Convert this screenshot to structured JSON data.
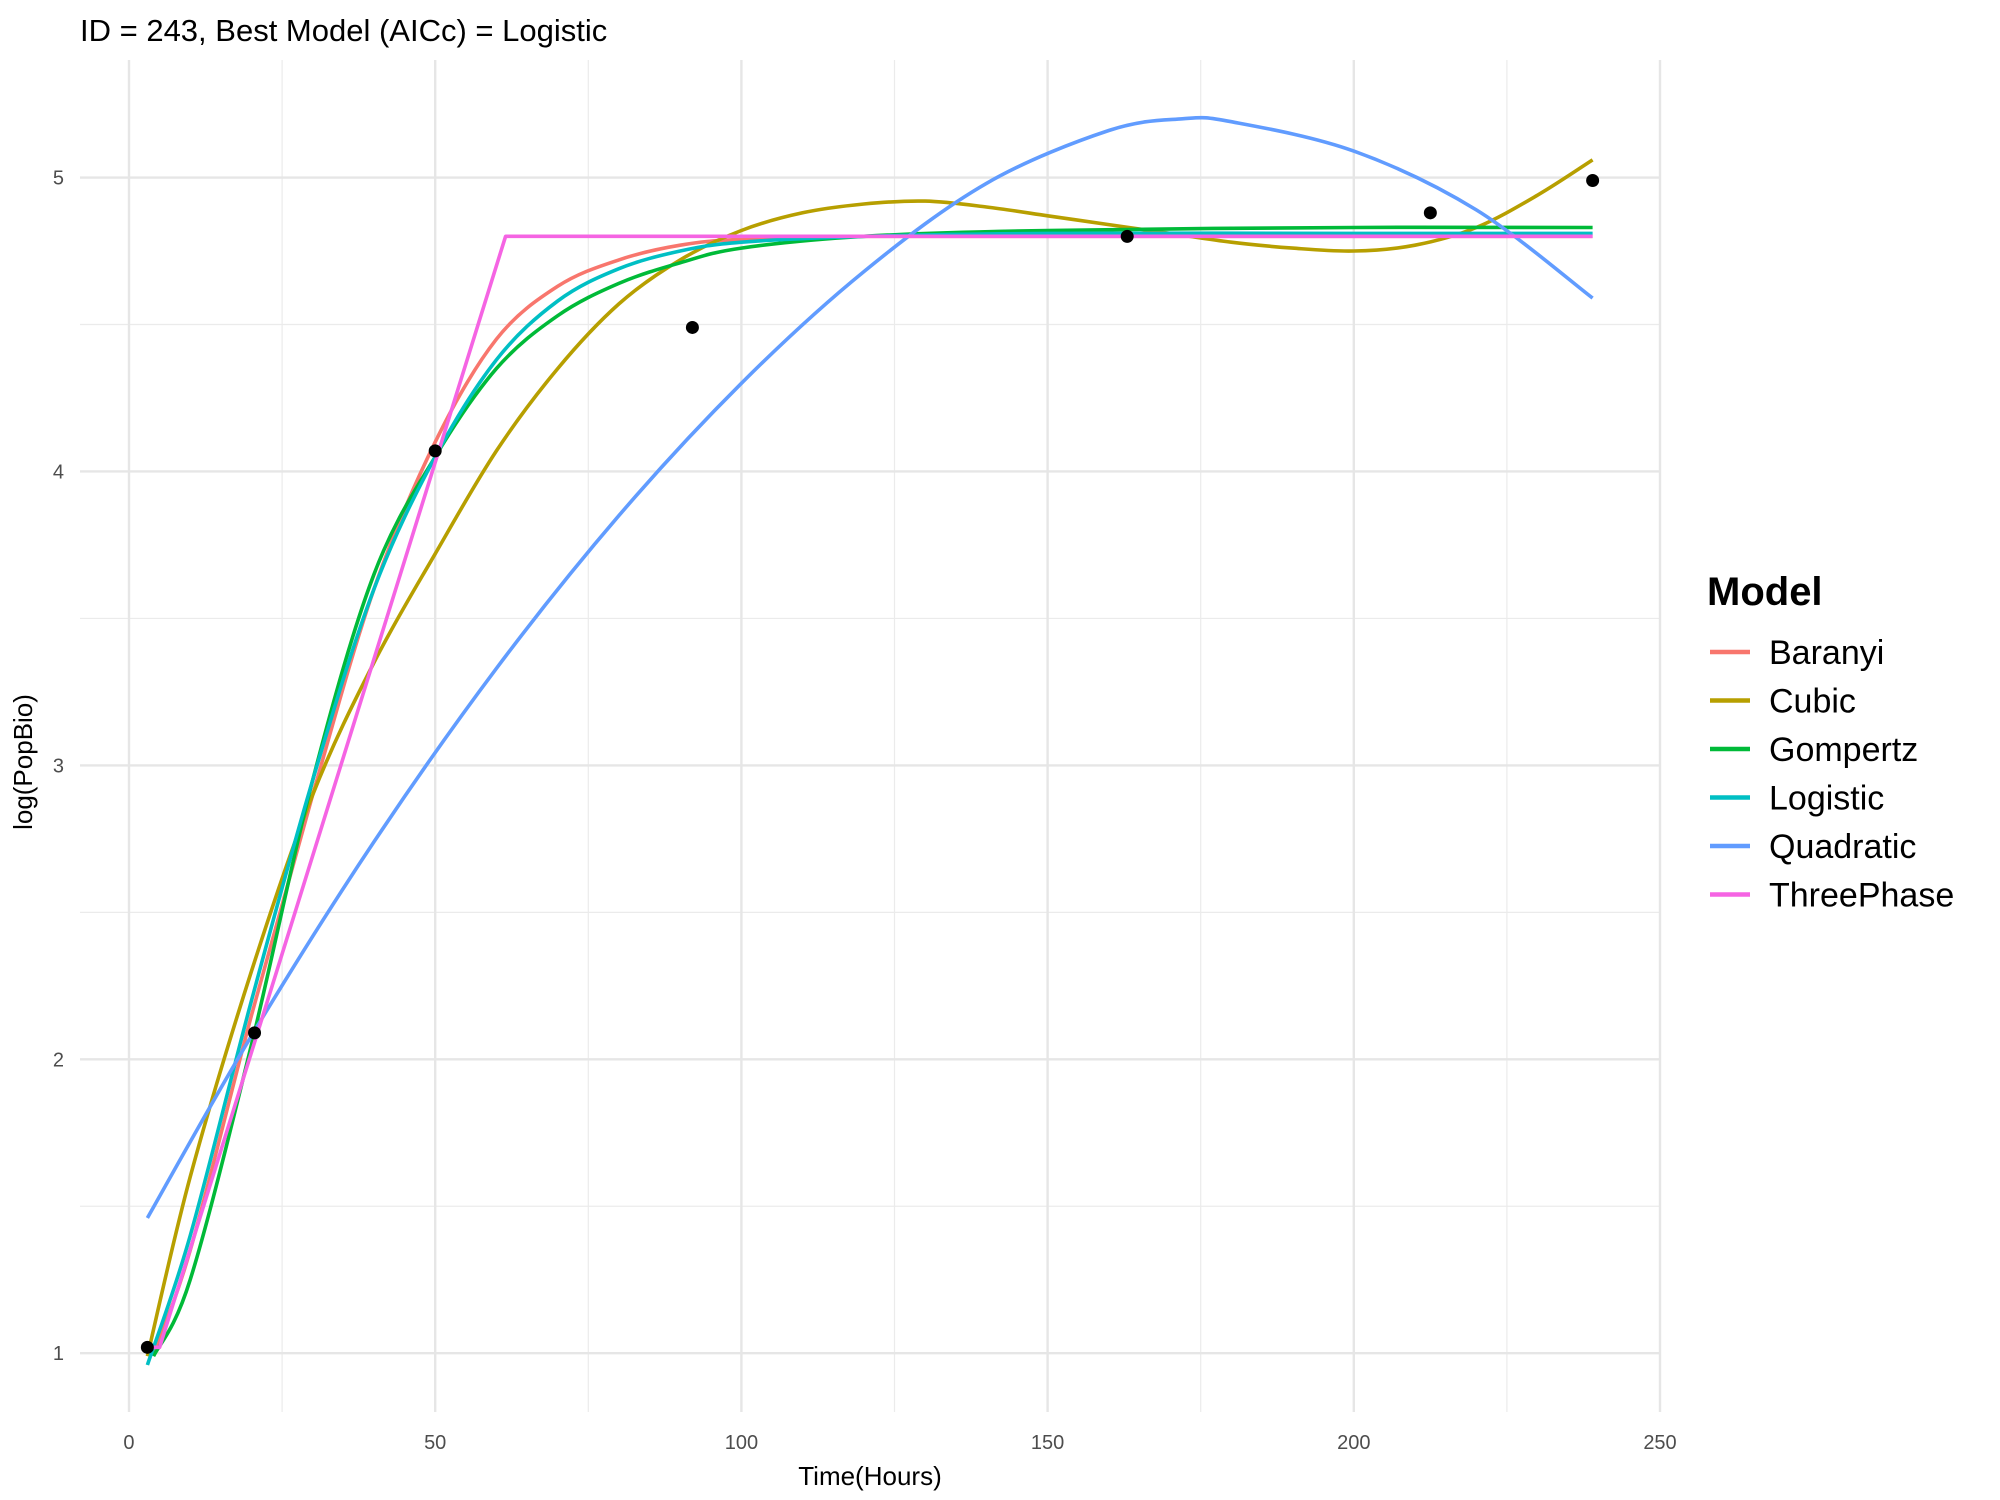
{
  "chart_data": {
    "type": "line",
    "title": "ID = 243, Best Model (AICc) = Logistic",
    "xlabel": "Time(Hours)",
    "ylabel": "log(PopBio)",
    "xlim": [
      -8,
      250
    ],
    "ylim": [
      0.8,
      5.4
    ],
    "x_ticks": [
      0,
      50,
      100,
      150,
      200,
      250
    ],
    "y_ticks": [
      1,
      2,
      3,
      4,
      5
    ],
    "x_tick_labels": [
      "0",
      "50",
      "100",
      "150",
      "200",
      "250"
    ],
    "y_tick_labels": [
      "1",
      "2",
      "3",
      "4",
      "5"
    ],
    "grid": true,
    "legend": {
      "title": "Model",
      "position": "right"
    },
    "points": {
      "color": "#000000",
      "x": [
        3,
        20.5,
        50,
        92,
        163,
        212.5,
        239
      ],
      "y": [
        1.02,
        2.09,
        4.07,
        4.49,
        4.8,
        4.88,
        4.99
      ]
    },
    "series": [
      {
        "name": "Baranyi",
        "color": "#F8766D",
        "x": [
          4,
          10,
          20,
          30,
          40,
          50,
          60,
          70,
          80,
          90,
          100,
          120,
          150,
          200,
          239
        ],
        "y": [
          1.0,
          1.35,
          2.15,
          2.9,
          3.6,
          4.1,
          4.45,
          4.63,
          4.72,
          4.77,
          4.79,
          4.8,
          4.8,
          4.8,
          4.8
        ]
      },
      {
        "name": "Cubic",
        "color": "#B79F00",
        "x": [
          3,
          10,
          20,
          30,
          40,
          50,
          60,
          70,
          80,
          90,
          100,
          110,
          120,
          130,
          140,
          150,
          160,
          170,
          180,
          190,
          200,
          210,
          220,
          230,
          239
        ],
        "y": [
          0.99,
          1.6,
          2.3,
          2.9,
          3.35,
          3.72,
          4.07,
          4.35,
          4.57,
          4.72,
          4.82,
          4.88,
          4.91,
          4.92,
          4.9,
          4.87,
          4.84,
          4.81,
          4.78,
          4.76,
          4.75,
          4.77,
          4.83,
          4.94,
          5.06
        ]
      },
      {
        "name": "Gompertz",
        "color": "#00BA38",
        "x": [
          4,
          10,
          20,
          30,
          40,
          50,
          60,
          70,
          80,
          90,
          100,
          120,
          150,
          200,
          239
        ],
        "y": [
          0.99,
          1.25,
          2.05,
          2.95,
          3.65,
          4.05,
          4.35,
          4.53,
          4.64,
          4.71,
          4.76,
          4.8,
          4.82,
          4.83,
          4.83
        ]
      },
      {
        "name": "Logistic",
        "color": "#00BFC4",
        "x": [
          3,
          10,
          20,
          30,
          40,
          50,
          60,
          70,
          80,
          90,
          100,
          120,
          150,
          200,
          239
        ],
        "y": [
          0.96,
          1.4,
          2.2,
          2.95,
          3.6,
          4.05,
          4.38,
          4.58,
          4.69,
          4.75,
          4.78,
          4.8,
          4.81,
          4.81,
          4.81
        ]
      },
      {
        "name": "Quadratic",
        "color": "#619CFF",
        "x": [
          3,
          20,
          40,
          60,
          80,
          100,
          120,
          140,
          160,
          172,
          180,
          200,
          220,
          239
        ],
        "y": [
          1.46,
          2.08,
          2.74,
          3.33,
          3.85,
          4.3,
          4.68,
          4.98,
          5.16,
          5.2,
          5.19,
          5.09,
          4.89,
          4.59
        ]
      },
      {
        "name": "ThreePhase",
        "color": "#F564E3",
        "x": [
          4,
          5,
          61.5,
          239
        ],
        "y": [
          1.02,
          1.02,
          4.8,
          4.8
        ]
      }
    ]
  }
}
